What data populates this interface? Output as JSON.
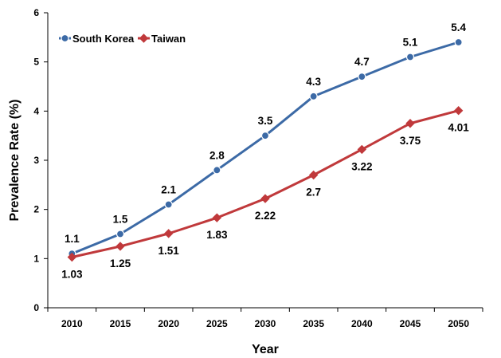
{
  "chart_data": {
    "type": "line",
    "xlabel": "Year",
    "ylabel": "Prevalence Rate (%)",
    "x": [
      "2010",
      "2015",
      "2020",
      "2025",
      "2030",
      "2035",
      "2040",
      "2045",
      "2050"
    ],
    "ylim": [
      0,
      6
    ],
    "yticks": [
      "0",
      "1",
      "2",
      "3",
      "4",
      "5",
      "6"
    ],
    "grid": false,
    "legend": "top-left",
    "series": [
      {
        "name": "South Korea",
        "color": "#3c6aa6",
        "marker": "circle",
        "values": [
          1.1,
          1.5,
          2.1,
          2.8,
          3.5,
          4.3,
          4.7,
          5.1,
          5.4
        ],
        "labels": [
          "1.1",
          "1.5",
          "2.1",
          "2.8",
          "3.5",
          "4.3",
          "4.7",
          "5.1",
          "5.4"
        ],
        "label_position": "above"
      },
      {
        "name": "Taiwan",
        "color": "#c0393b",
        "marker": "diamond",
        "values": [
          1.03,
          1.25,
          1.51,
          1.83,
          2.22,
          2.7,
          3.22,
          3.75,
          4.01
        ],
        "labels": [
          "1.03",
          "1.25",
          "1.51",
          "1.83",
          "2.22",
          "2.7",
          "3.22",
          "3.75",
          "4.01"
        ],
        "label_position": "below"
      }
    ]
  }
}
